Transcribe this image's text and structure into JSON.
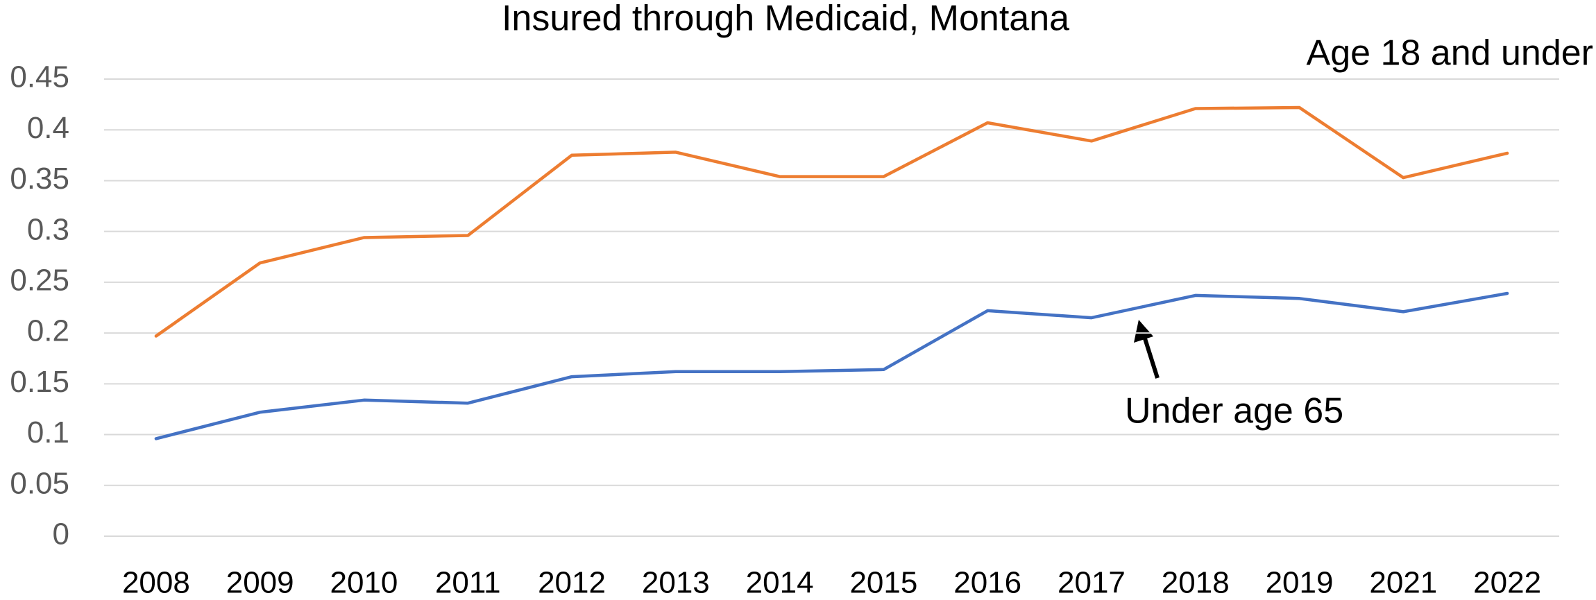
{
  "chart_data": {
    "type": "line",
    "title": "Insured through Medicaid, Montana",
    "categories": [
      "2008",
      "2009",
      "2010",
      "2011",
      "2012",
      "2013",
      "2014",
      "2015",
      "2016",
      "2017",
      "2018",
      "2019",
      "2021",
      "2022"
    ],
    "series": [
      {
        "name": "Age 18 and under",
        "color": "#ed7d31",
        "values": [
          0.197,
          0.269,
          0.294,
          0.296,
          0.375,
          0.378,
          0.354,
          0.354,
          0.407,
          0.389,
          0.421,
          0.422,
          0.353,
          0.377
        ]
      },
      {
        "name": "Under age 65",
        "color": "#4472c4",
        "values": [
          0.096,
          0.122,
          0.134,
          0.131,
          0.157,
          0.162,
          0.162,
          0.164,
          0.222,
          0.215,
          0.237,
          0.234,
          0.221,
          0.239
        ]
      }
    ],
    "ylim": [
      0,
      0.45
    ],
    "yticks": [
      0,
      0.05,
      0.1,
      0.15,
      0.2,
      0.25,
      0.3,
      0.35,
      0.4,
      0.45
    ],
    "grid": true
  }
}
